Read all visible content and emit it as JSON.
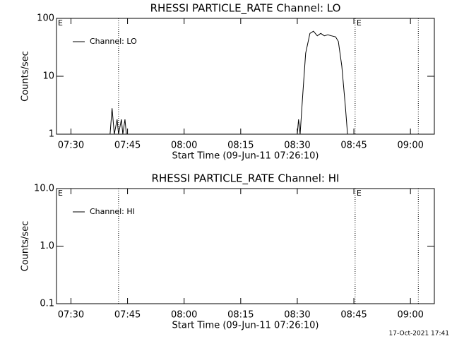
{
  "chart_data": [
    {
      "type": "line",
      "title": "RHESSI PARTICLE_RATE Channel: LO",
      "xlabel": "Start Time (09-Jun-11 07:26:10)",
      "ylabel": "Counts/sec",
      "x": [
        "07:40:22",
        "07:40:54",
        "07:41:29",
        "07:42:14",
        "07:42:37",
        "07:43:22",
        "07:43:45",
        "07:44:19",
        "07:44:41",
        "08:30:00",
        "08:30:20",
        "08:30:45",
        "08:31:28",
        "08:32:13",
        "08:33:21",
        "08:34:17",
        "08:35:18",
        "08:36:13",
        "08:37:10",
        "08:38:06",
        "08:39:02",
        "08:40:09",
        "08:40:53",
        "08:41:48",
        "08:42:45",
        "08:43:19"
      ],
      "series": [
        {
          "name": "Channel: LO",
          "color": "#000000",
          "values": [
            1,
            2.8,
            1,
            1.8,
            1,
            1.8,
            1,
            1.8,
            1,
            1,
            1.8,
            1,
            5,
            25,
            55,
            60,
            50,
            55,
            50,
            52,
            50,
            48,
            40,
            15,
            3,
            1
          ]
        }
      ],
      "xlim": [
        "07:26:10",
        "09:06:20"
      ],
      "xticks": [
        "07:30",
        "07:45",
        "08:00",
        "08:15",
        "08:30",
        "08:45",
        "09:00"
      ],
      "ylim": [
        1,
        100
      ],
      "yticks": [
        1,
        10,
        100
      ],
      "log_y": true,
      "legend": "upper left",
      "vlines": [
        "07:42:37",
        "08:45:20",
        "09:02:05"
      ],
      "annotations": [
        {
          "x": "07:26:10",
          "text": "E"
        },
        {
          "x": "08:45:20",
          "text": "E"
        }
      ]
    },
    {
      "type": "line",
      "title": "RHESSI PARTICLE_RATE Channel: HI",
      "xlabel": "Start Time (09-Jun-11 07:26:10)",
      "ylabel": "Counts/sec",
      "x": [],
      "series": [
        {
          "name": "Channel: HI",
          "color": "#000000",
          "values": []
        }
      ],
      "xlim": [
        "07:26:10",
        "09:06:20"
      ],
      "xticks": [
        "07:30",
        "07:45",
        "08:00",
        "08:15",
        "08:30",
        "08:45",
        "09:00"
      ],
      "ylim": [
        0.1,
        10
      ],
      "yticks": [
        0.1,
        {
          "value": 1,
          "label": "1.0"
        },
        {
          "value": 10,
          "label": "10.0"
        }
      ],
      "log_y": true,
      "legend": "upper left",
      "vlines": [
        "07:42:37",
        "08:45:20",
        "09:02:05"
      ],
      "annotations": [
        {
          "x": "07:26:10",
          "text": "E"
        },
        {
          "x": "08:45:20",
          "text": "E"
        }
      ]
    }
  ],
  "footer": "17-Oct-2021 17:41"
}
